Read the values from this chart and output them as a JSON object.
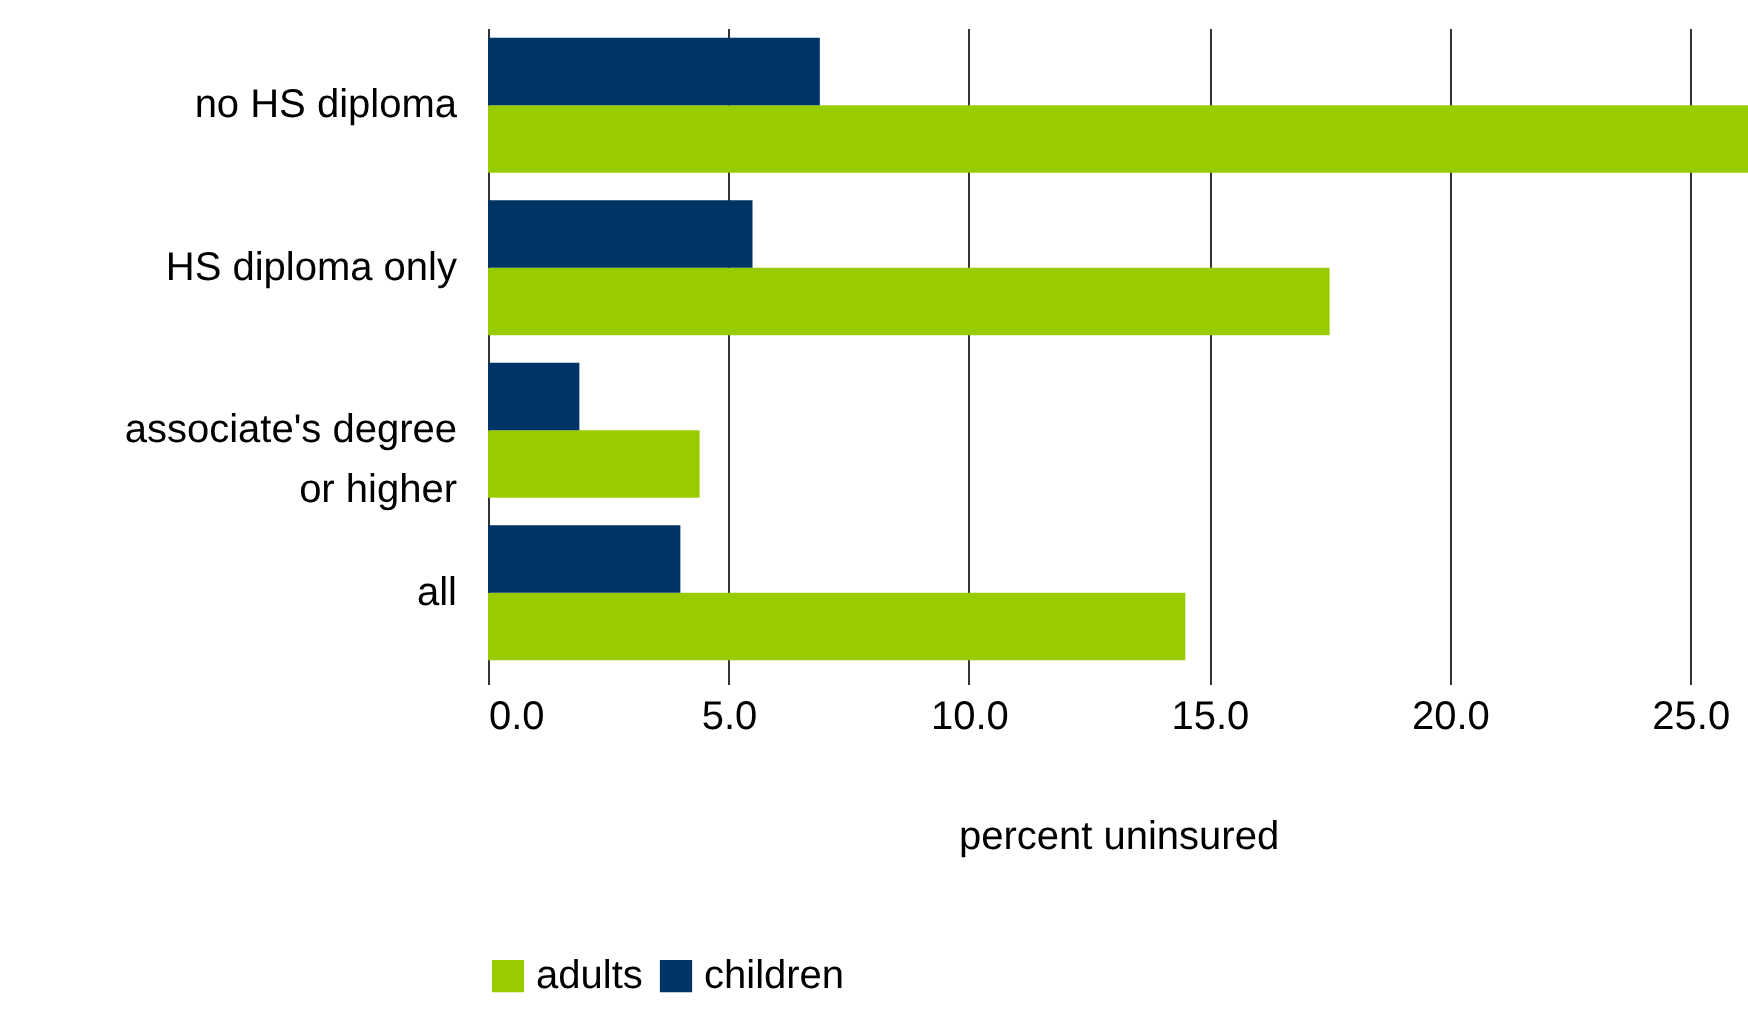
{
  "chart_data": {
    "type": "bar",
    "orientation": "horizontal",
    "xlabel": "percent uninsured",
    "categories": [
      "no HS diploma",
      "HS diploma only",
      "associate's degree or higher",
      "all"
    ],
    "series": [
      {
        "name": "adults",
        "color": "#99cc00",
        "values": [
          26.2,
          17.5,
          4.4,
          14.5
        ]
      },
      {
        "name": "children",
        "color": "#003366",
        "values": [
          6.9,
          5.5,
          1.9,
          4.0
        ]
      }
    ],
    "xlim": [
      0,
      26.2
    ],
    "xticks": [
      {
        "value": 0,
        "label": "0.0"
      },
      {
        "value": 5,
        "label": "5.0"
      },
      {
        "value": 10,
        "label": "10.0"
      },
      {
        "value": 15,
        "label": "15.0"
      },
      {
        "value": 20,
        "label": "20.0"
      },
      {
        "value": 25,
        "label": "25.0"
      }
    ],
    "grid": "x",
    "legend": "bottom"
  }
}
